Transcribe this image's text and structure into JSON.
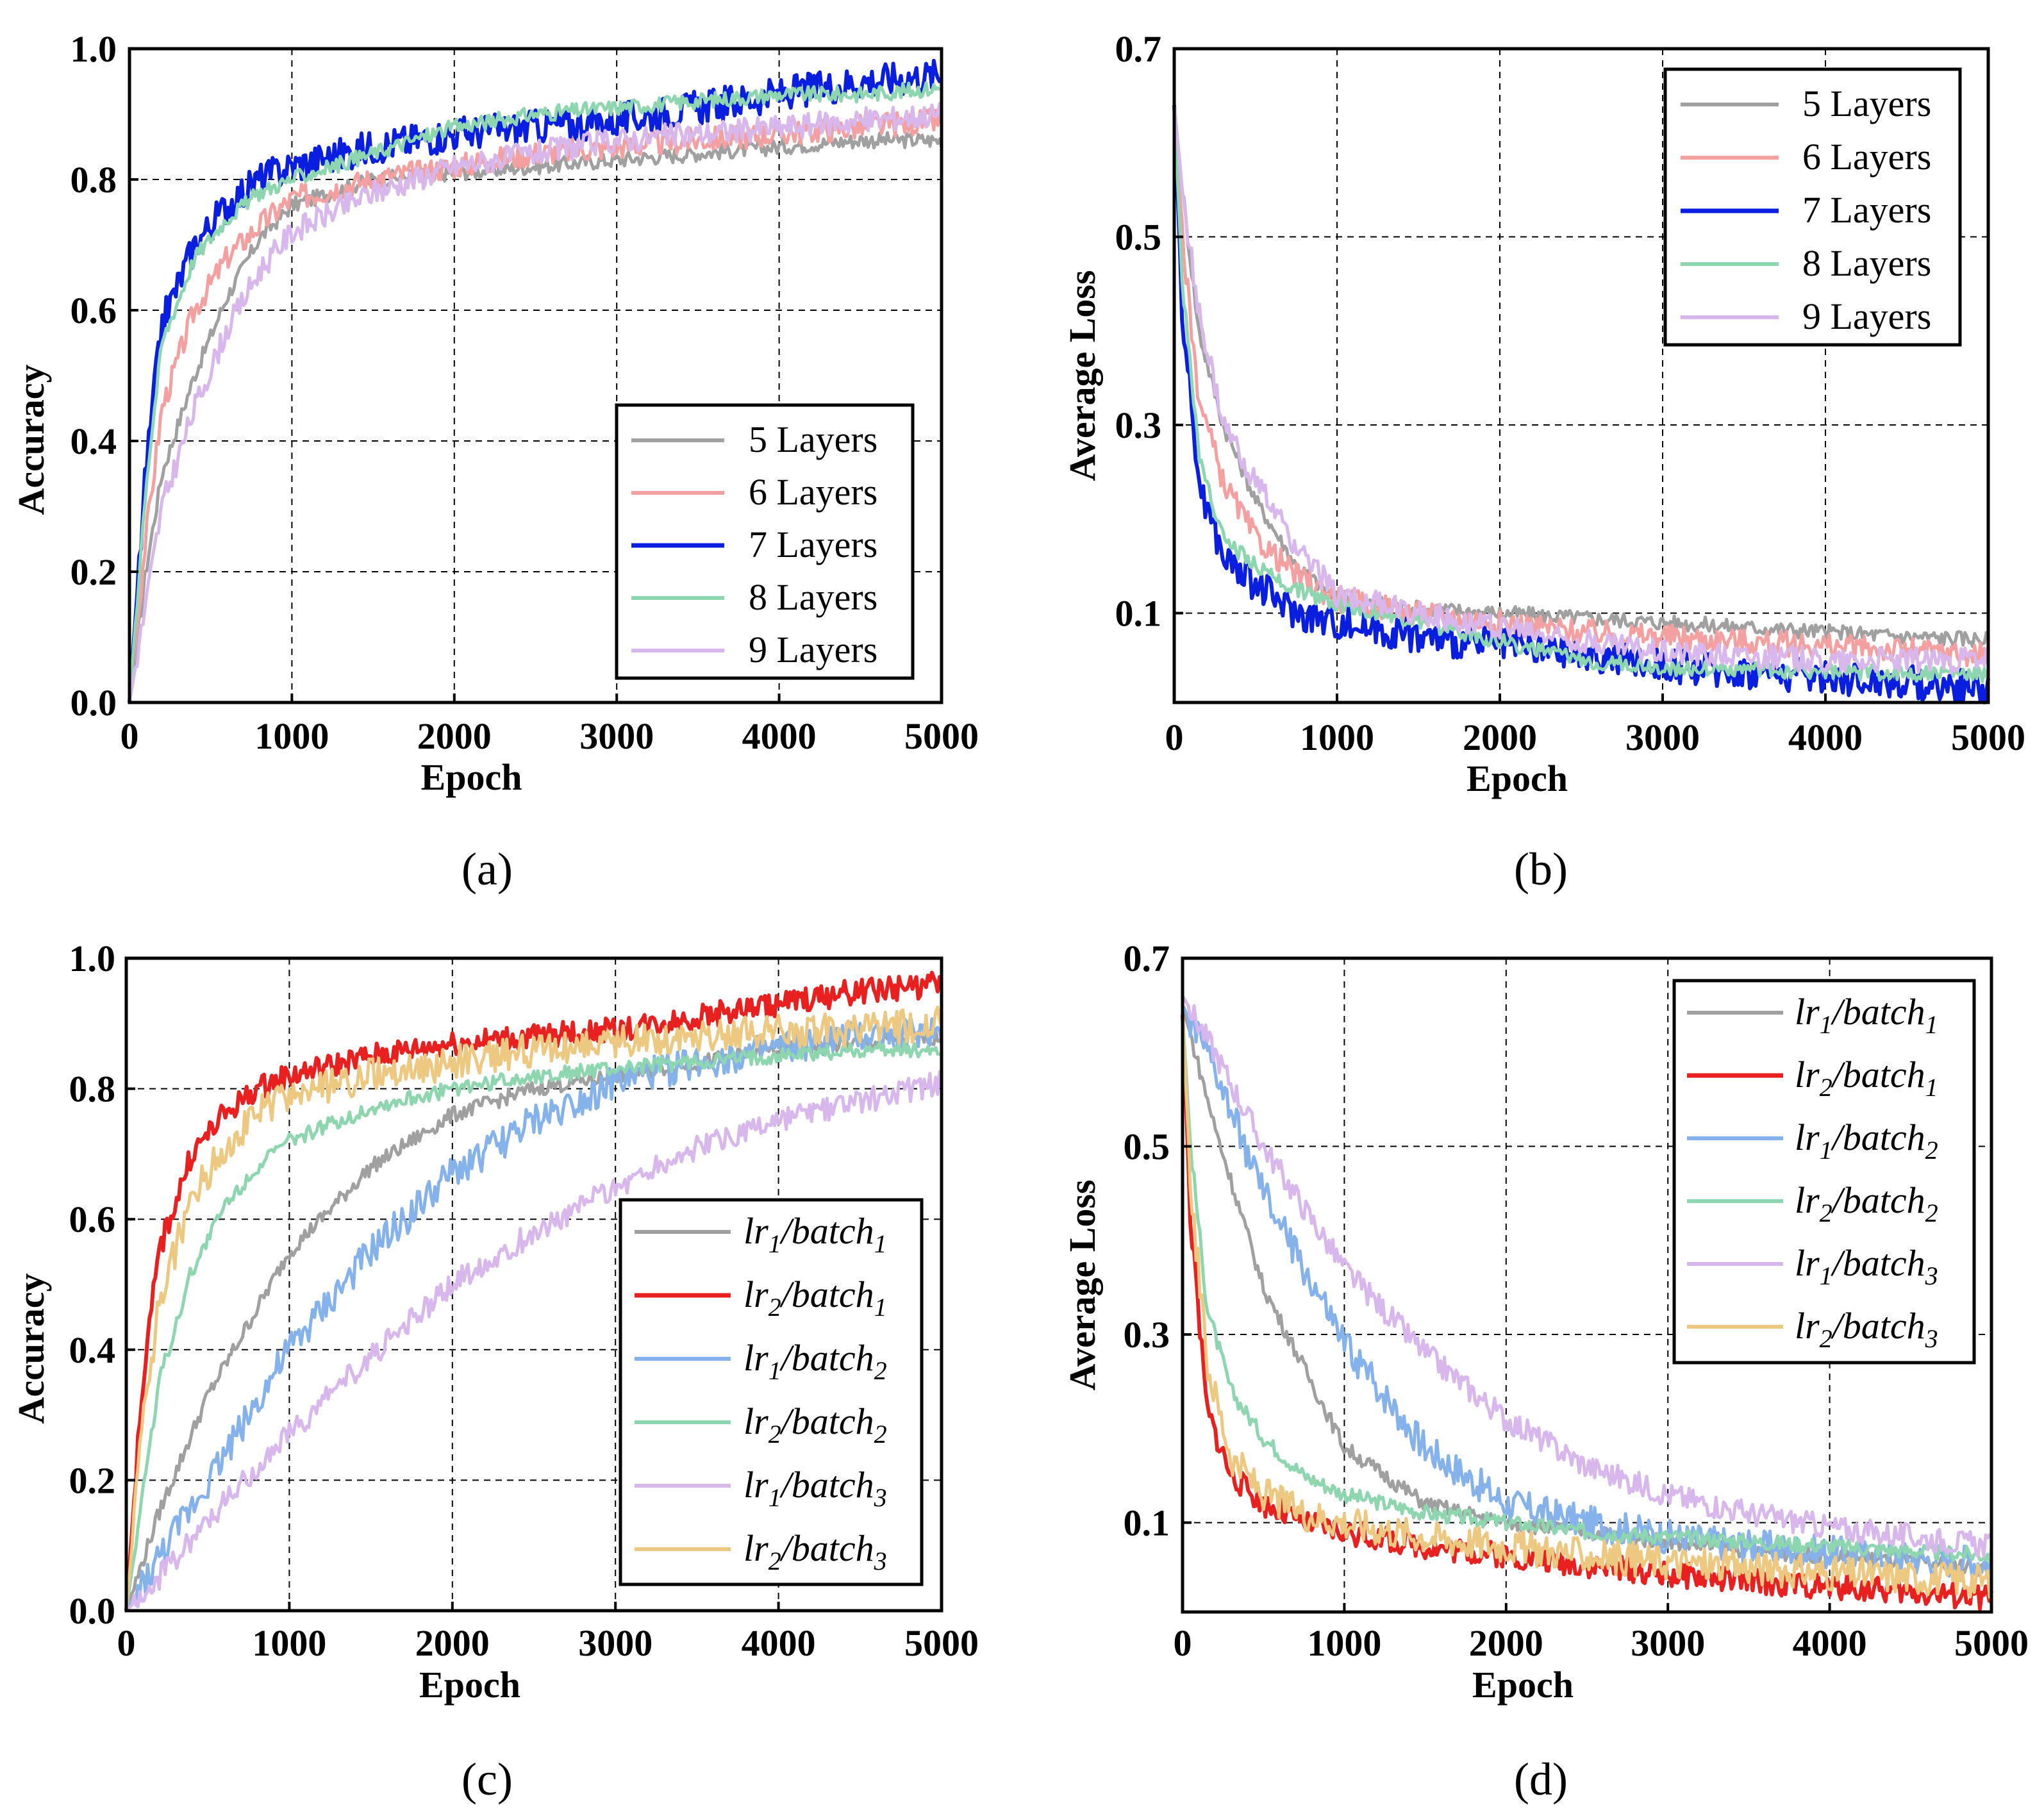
{
  "figure": {
    "panels": [
      "(a)",
      "(b)",
      "(c)",
      "(d)"
    ]
  },
  "chart_data": [
    {
      "id": "a",
      "type": "line",
      "title": "",
      "panel_label": "(a)",
      "xlabel": "Epoch",
      "ylabel": "Accuracy",
      "xlim": [
        0,
        5000
      ],
      "ylim": [
        0,
        1.0
      ],
      "xticks": [
        "0",
        "1000",
        "2000",
        "3000",
        "4000",
        "5000"
      ],
      "yticks": [
        "0.0",
        "0.2",
        "0.4",
        "0.6",
        "0.8",
        "1.0"
      ],
      "grid": true,
      "legend_position": "lower-right",
      "series": [
        {
          "name": "5 Layers",
          "color": "#a0a0a0",
          "x": [
            0,
            100,
            200,
            400,
            600,
            800,
            1000,
            1500,
            2000,
            2500,
            3000,
            3500,
            4000,
            4500,
            5000
          ],
          "values": [
            0.0,
            0.2,
            0.35,
            0.5,
            0.62,
            0.71,
            0.76,
            0.8,
            0.81,
            0.82,
            0.83,
            0.84,
            0.85,
            0.86,
            0.86
          ]
        },
        {
          "name": "6 Layers",
          "color": "#f4a0a0",
          "x": [
            0,
            100,
            200,
            400,
            600,
            800,
            1000,
            1500,
            2000,
            2500,
            3000,
            3500,
            4000,
            4500,
            5000
          ],
          "values": [
            0.0,
            0.25,
            0.45,
            0.6,
            0.68,
            0.73,
            0.77,
            0.8,
            0.82,
            0.84,
            0.85,
            0.86,
            0.87,
            0.88,
            0.89
          ]
        },
        {
          "name": "7 Layers",
          "color": "#0a1ee0",
          "x": [
            0,
            100,
            200,
            400,
            600,
            800,
            1000,
            1500,
            2000,
            2500,
            3000,
            3500,
            4000,
            4500,
            5000
          ],
          "values": [
            0.0,
            0.35,
            0.58,
            0.7,
            0.76,
            0.8,
            0.82,
            0.85,
            0.87,
            0.88,
            0.89,
            0.91,
            0.93,
            0.95,
            0.96
          ]
        },
        {
          "name": "8 Layers",
          "color": "#8ed6b0",
          "x": [
            0,
            100,
            200,
            400,
            600,
            800,
            1000,
            1500,
            2000,
            2500,
            3000,
            3500,
            4000,
            4500,
            5000
          ],
          "values": [
            0.0,
            0.33,
            0.55,
            0.68,
            0.74,
            0.78,
            0.8,
            0.84,
            0.88,
            0.9,
            0.91,
            0.92,
            0.93,
            0.93,
            0.94
          ]
        },
        {
          "name": "9 Layers",
          "color": "#d8b8ec",
          "x": [
            0,
            100,
            200,
            400,
            600,
            800,
            1000,
            1500,
            2000,
            2500,
            3000,
            3500,
            4000,
            4500,
            5000
          ],
          "values": [
            0.0,
            0.15,
            0.3,
            0.45,
            0.57,
            0.66,
            0.72,
            0.78,
            0.82,
            0.84,
            0.86,
            0.87,
            0.88,
            0.89,
            0.9
          ]
        }
      ]
    },
    {
      "id": "b",
      "type": "line",
      "title": "",
      "panel_label": "(b)",
      "xlabel": "Epoch",
      "ylabel": "Average  Loss",
      "xlim": [
        0,
        5000
      ],
      "ylim": [
        0.005,
        0.7
      ],
      "xticks": [
        "0",
        "1000",
        "2000",
        "3000",
        "4000",
        "5000"
      ],
      "yticks": [
        "0.1",
        "0.3",
        "0.5",
        "0.7"
      ],
      "grid": true,
      "legend_position": "top-right",
      "series": [
        {
          "name": "5 Layers",
          "color": "#a0a0a0",
          "x": [
            0,
            50,
            150,
            300,
            500,
            750,
            1000,
            1500,
            2000,
            2500,
            3000,
            3500,
            4000,
            4500,
            5000
          ],
          "values": [
            0.64,
            0.55,
            0.4,
            0.3,
            0.22,
            0.15,
            0.115,
            0.105,
            0.1,
            0.095,
            0.09,
            0.085,
            0.08,
            0.075,
            0.072
          ]
        },
        {
          "name": "6 Layers",
          "color": "#f4a0a0",
          "x": [
            0,
            50,
            150,
            300,
            500,
            750,
            1000,
            1500,
            2000,
            2500,
            3000,
            3500,
            4000,
            4500,
            5000
          ],
          "values": [
            0.64,
            0.5,
            0.33,
            0.24,
            0.18,
            0.14,
            0.115,
            0.1,
            0.09,
            0.08,
            0.075,
            0.07,
            0.065,
            0.06,
            0.055
          ]
        },
        {
          "name": "7 Layers",
          "color": "#0a1ee0",
          "x": [
            0,
            50,
            150,
            300,
            500,
            750,
            1000,
            1500,
            2000,
            2500,
            3000,
            3500,
            4000,
            4500,
            5000
          ],
          "values": [
            0.64,
            0.42,
            0.24,
            0.16,
            0.13,
            0.1,
            0.09,
            0.075,
            0.065,
            0.055,
            0.045,
            0.038,
            0.032,
            0.026,
            0.02
          ]
        },
        {
          "name": "8 Layers",
          "color": "#8ed6b0",
          "x": [
            0,
            50,
            150,
            300,
            500,
            750,
            1000,
            1500,
            2000,
            2500,
            3000,
            3500,
            4000,
            4500,
            5000
          ],
          "values": [
            0.64,
            0.45,
            0.27,
            0.18,
            0.15,
            0.125,
            0.11,
            0.09,
            0.07,
            0.05,
            0.042,
            0.04,
            0.038,
            0.036,
            0.035
          ]
        },
        {
          "name": "9 Layers",
          "color": "#d8b8ec",
          "x": [
            0,
            50,
            150,
            300,
            500,
            750,
            1000,
            1500,
            2000,
            2500,
            3000,
            3500,
            4000,
            4500,
            5000
          ],
          "values": [
            0.64,
            0.55,
            0.42,
            0.3,
            0.24,
            0.17,
            0.12,
            0.1,
            0.085,
            0.07,
            0.06,
            0.055,
            0.05,
            0.05,
            0.05
          ]
        }
      ]
    },
    {
      "id": "c",
      "type": "line",
      "title": "",
      "panel_label": "(c)",
      "xlabel": "Epoch",
      "ylabel": "Accuracy",
      "xlim": [
        0,
        5000
      ],
      "ylim": [
        0,
        1.0
      ],
      "xticks": [
        "0",
        "1000",
        "2000",
        "3000",
        "4000",
        "5000"
      ],
      "yticks": [
        "0.0",
        "0.2",
        "0.4",
        "0.6",
        "0.8",
        "1.0"
      ],
      "grid": true,
      "legend_position": "lower-right",
      "series": [
        {
          "name": "lr1/batch1",
          "lr": "1",
          "batch": "1",
          "color": "#a0a0a0",
          "x": [
            0,
            200,
            500,
            1000,
            1500,
            2000,
            2500,
            3000,
            3500,
            4000,
            4500,
            5000
          ],
          "values": [
            0.0,
            0.15,
            0.33,
            0.55,
            0.68,
            0.76,
            0.8,
            0.82,
            0.84,
            0.86,
            0.87,
            0.88
          ]
        },
        {
          "name": "lr2/batch1",
          "lr": "2",
          "batch": "1",
          "color": "#e82020",
          "x": [
            0,
            100,
            200,
            400,
            600,
            800,
            1000,
            1500,
            2000,
            2500,
            3000,
            3500,
            4000,
            4500,
            5000
          ],
          "values": [
            0.0,
            0.35,
            0.55,
            0.7,
            0.76,
            0.8,
            0.82,
            0.85,
            0.87,
            0.88,
            0.89,
            0.91,
            0.93,
            0.95,
            0.96
          ]
        },
        {
          "name": "lr1/batch2",
          "lr": "1",
          "batch": "2",
          "color": "#86b2ec",
          "x": [
            0,
            200,
            500,
            1000,
            1500,
            2000,
            2500,
            3000,
            3500,
            4000,
            4500,
            5000
          ],
          "values": [
            0.0,
            0.08,
            0.2,
            0.4,
            0.55,
            0.67,
            0.75,
            0.81,
            0.84,
            0.86,
            0.88,
            0.89
          ]
        },
        {
          "name": "lr2/batch2",
          "lr": "2",
          "batch": "2",
          "color": "#8ed6b0",
          "x": [
            0,
            100,
            200,
            400,
            600,
            800,
            1000,
            1500,
            2000,
            2500,
            3000,
            3500,
            4000,
            4500,
            5000
          ],
          "values": [
            0.0,
            0.18,
            0.35,
            0.52,
            0.62,
            0.68,
            0.72,
            0.77,
            0.8,
            0.82,
            0.83,
            0.84,
            0.85,
            0.86,
            0.86
          ]
        },
        {
          "name": "lr1/batch3",
          "lr": "1",
          "batch": "3",
          "color": "#d8b8ec",
          "x": [
            0,
            200,
            500,
            1000,
            1500,
            2000,
            2500,
            3000,
            3500,
            4000,
            4500,
            5000
          ],
          "values": [
            0.0,
            0.05,
            0.14,
            0.27,
            0.39,
            0.5,
            0.58,
            0.65,
            0.71,
            0.75,
            0.78,
            0.81
          ]
        },
        {
          "name": "lr2/batch3",
          "lr": "2",
          "batch": "3",
          "color": "#ecc880",
          "x": [
            0,
            100,
            200,
            400,
            600,
            800,
            1000,
            1500,
            2000,
            2500,
            3000,
            3500,
            4000,
            4500,
            5000
          ],
          "values": [
            0.0,
            0.28,
            0.47,
            0.63,
            0.71,
            0.76,
            0.79,
            0.82,
            0.84,
            0.86,
            0.87,
            0.88,
            0.89,
            0.89,
            0.9
          ]
        }
      ]
    },
    {
      "id": "d",
      "type": "line",
      "title": "",
      "panel_label": "(d)",
      "xlabel": "Epoch",
      "ylabel": "Average  Loss",
      "xlim": [
        0,
        5000
      ],
      "ylim": [
        0.005,
        0.7
      ],
      "xticks": [
        "0",
        "1000",
        "2000",
        "3000",
        "4000",
        "5000"
      ],
      "yticks": [
        "0.1",
        "0.3",
        "0.5",
        "0.7"
      ],
      "grid": true,
      "legend_position": "top-right",
      "series": [
        {
          "name": "lr1/batch1",
          "lr": "1",
          "batch": "1",
          "color": "#a0a0a0",
          "x": [
            0,
            200,
            500,
            1000,
            1500,
            2000,
            2500,
            3000,
            3500,
            4000,
            4500,
            5000
          ],
          "values": [
            0.65,
            0.52,
            0.35,
            0.18,
            0.12,
            0.1,
            0.09,
            0.08,
            0.07,
            0.065,
            0.058,
            0.05
          ]
        },
        {
          "name": "lr2/batch1",
          "lr": "2",
          "batch": "1",
          "color": "#e82020",
          "x": [
            0,
            50,
            150,
            300,
            500,
            750,
            1000,
            1500,
            2000,
            2500,
            3000,
            3500,
            4000,
            4500,
            5000
          ],
          "values": [
            0.64,
            0.42,
            0.22,
            0.15,
            0.12,
            0.1,
            0.09,
            0.075,
            0.065,
            0.055,
            0.045,
            0.038,
            0.032,
            0.026,
            0.02
          ]
        },
        {
          "name": "lr1/batch2",
          "lr": "1",
          "batch": "2",
          "color": "#86b2ec",
          "x": [
            0,
            200,
            500,
            1000,
            1500,
            2000,
            2500,
            3000,
            3500,
            4000,
            4500,
            5000
          ],
          "values": [
            0.65,
            0.58,
            0.45,
            0.29,
            0.18,
            0.12,
            0.1,
            0.085,
            0.075,
            0.068,
            0.062,
            0.058
          ]
        },
        {
          "name": "lr2/batch2",
          "lr": "2",
          "batch": "2",
          "color": "#8ed6b0",
          "x": [
            0,
            50,
            150,
            300,
            500,
            750,
            1000,
            1500,
            2000,
            2500,
            3000,
            3500,
            4000,
            4500,
            5000
          ],
          "values": [
            0.64,
            0.5,
            0.33,
            0.24,
            0.19,
            0.15,
            0.13,
            0.11,
            0.1,
            0.09,
            0.085,
            0.08,
            0.075,
            0.07,
            0.065
          ]
        },
        {
          "name": "lr1/batch3",
          "lr": "1",
          "batch": "3",
          "color": "#d8b8ec",
          "x": [
            0,
            200,
            500,
            1000,
            1500,
            2000,
            2500,
            3000,
            3500,
            4000,
            4500,
            5000
          ],
          "values": [
            0.66,
            0.6,
            0.5,
            0.37,
            0.28,
            0.21,
            0.16,
            0.13,
            0.11,
            0.095,
            0.085,
            0.075
          ]
        },
        {
          "name": "lr2/batch3",
          "lr": "2",
          "batch": "3",
          "color": "#ecc880",
          "x": [
            0,
            50,
            150,
            300,
            500,
            750,
            1000,
            1500,
            2000,
            2500,
            3000,
            3500,
            4000,
            4500,
            5000
          ],
          "values": [
            0.64,
            0.46,
            0.27,
            0.17,
            0.13,
            0.11,
            0.1,
            0.085,
            0.075,
            0.065,
            0.058,
            0.052,
            0.046,
            0.042,
            0.038
          ]
        }
      ]
    }
  ]
}
